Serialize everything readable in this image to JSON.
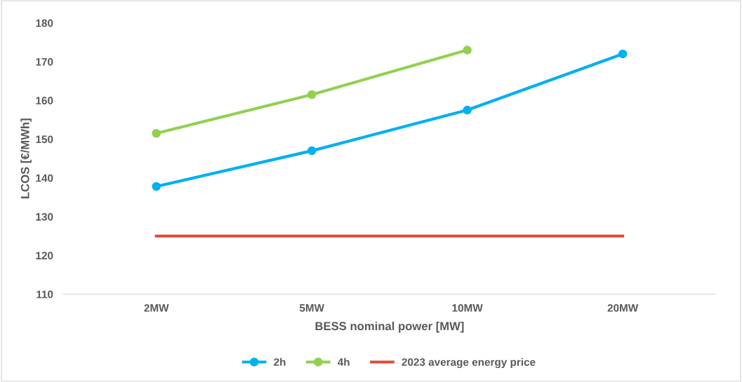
{
  "chart_data": {
    "type": "line",
    "xlabel": "BESS nominal power [MW]",
    "ylabel": "LCOS [€/MWh]",
    "categories": [
      "2MW",
      "5MW",
      "10MW",
      "20MW"
    ],
    "series": [
      {
        "name": "2h",
        "color": "#00b0f0",
        "marker": "circle",
        "values": [
          137.8,
          147,
          157.5,
          172
        ]
      },
      {
        "name": "4h",
        "color": "#92d050",
        "marker": "circle",
        "values": [
          151.5,
          161.5,
          173,
          null
        ]
      },
      {
        "name": "2023 average energy price",
        "color": "#e04b3a",
        "marker": "none",
        "values": [
          125,
          125,
          125,
          125
        ]
      }
    ],
    "ylim": [
      110,
      180
    ],
    "yticks": [
      110,
      120,
      130,
      140,
      150,
      160,
      170,
      180
    ],
    "grid": false,
    "legend": "bottom",
    "line_style": "solid"
  }
}
